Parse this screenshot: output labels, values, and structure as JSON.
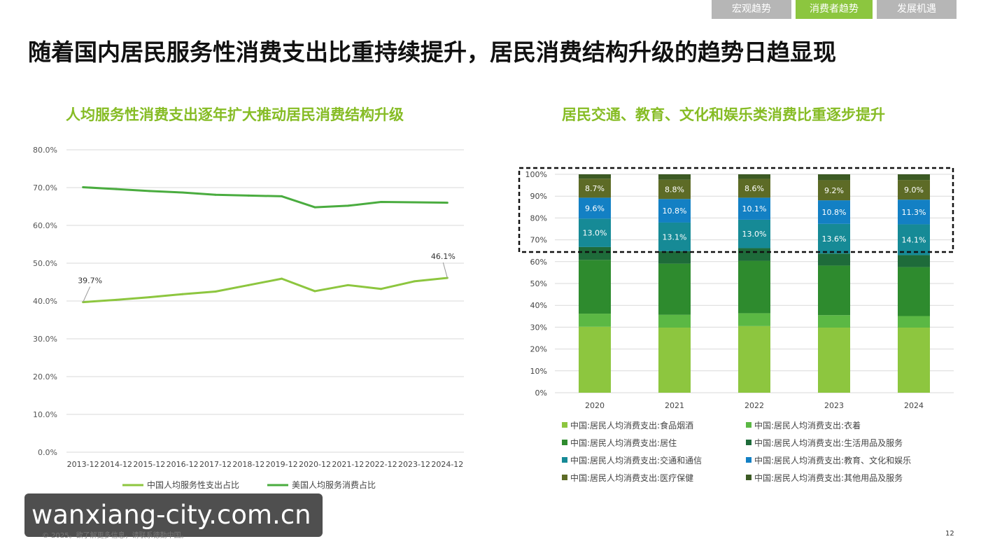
{
  "tabs": [
    {
      "label": "宏观趋势",
      "active": false
    },
    {
      "label": "消费者趋势",
      "active": true
    },
    {
      "label": "发展机遇",
      "active": false
    }
  ],
  "page_title": "随着国内居民服务性消费支出比重持续提升，居民消费结构升级的趋势日趋显现",
  "chart_data": [
    {
      "type": "line",
      "title": "人均服务性消费支出逐年扩大推动居民消费结构升级",
      "x": [
        "2013-12",
        "2014-12",
        "2015-12",
        "2016-12",
        "2017-12",
        "2018-12",
        "2019-12",
        "2020-12",
        "2021-12",
        "2022-12",
        "2023-12",
        "2024-12"
      ],
      "ylim": [
        0,
        80
      ],
      "yticks": [
        "0.0%",
        "10.0%",
        "20.0%",
        "30.0%",
        "40.0%",
        "50.0%",
        "60.0%",
        "70.0%",
        "80.0%"
      ],
      "grid": true,
      "legend_position": "bottom",
      "series": [
        {
          "name": "中国人均服务性支出占比",
          "color": "#8dc63f",
          "values": [
            39.7,
            40.3,
            41.0,
            41.8,
            42.5,
            44.2,
            45.9,
            42.6,
            44.2,
            43.2,
            45.2,
            46.1
          ]
        },
        {
          "name": "美国人均服务消费占比",
          "color": "#4aac3f",
          "values": [
            70.1,
            69.6,
            69.1,
            68.7,
            68.1,
            67.9,
            67.7,
            64.8,
            65.2,
            66.2,
            66.1,
            66.0
          ]
        }
      ],
      "annotations": [
        {
          "series": 0,
          "index": 0,
          "text": "39.7%"
        },
        {
          "series": 0,
          "index": 11,
          "text": "46.1%"
        }
      ]
    },
    {
      "type": "bar",
      "stacked": true,
      "title": "居民交通、教育、文化和娱乐类消费比重逐步提升",
      "categories": [
        "2020",
        "2021",
        "2022",
        "2023",
        "2024"
      ],
      "ylim": [
        0,
        100
      ],
      "yticks": [
        "0%",
        "10%",
        "20%",
        "30%",
        "40%",
        "50%",
        "60%",
        "70%",
        "80%",
        "90%",
        "100%"
      ],
      "grid": true,
      "legend_position": "bottom",
      "series": [
        {
          "name": "中国:居民人均消费支出:食品烟酒",
          "color": "#8dc63f",
          "values": [
            30.2,
            29.8,
            30.5,
            29.8,
            29.8
          ],
          "labels": [
            "",
            "",
            "",
            "",
            ""
          ]
        },
        {
          "name": "中国:居民人均消费支出:衣着",
          "color": "#5bb844",
          "values": [
            6.0,
            5.9,
            5.9,
            5.7,
            5.3
          ],
          "labels": [
            "",
            "",
            "",
            "",
            ""
          ]
        },
        {
          "name": "中国:居民人均消费支出:居住",
          "color": "#2e8b2e",
          "values": [
            24.6,
            23.4,
            24.0,
            22.7,
            22.4
          ],
          "labels": [
            "",
            "",
            "",
            "",
            ""
          ]
        },
        {
          "name": "中国:居民人均消费支出:生活用品及服务",
          "color": "#1e6b3a",
          "values": [
            5.9,
            5.7,
            5.8,
            5.5,
            5.5
          ],
          "labels": [
            "",
            "",
            "",
            "",
            ""
          ]
        },
        {
          "name": "中国:居民人均消费支出:交通和通信",
          "color": "#168a96",
          "values": [
            13.0,
            13.1,
            13.0,
            13.6,
            14.1
          ],
          "labels": [
            "13.0%",
            "13.1%",
            "13.0%",
            "13.6%",
            "14.1%"
          ]
        },
        {
          "name": "中国:居民人均消费支出:教育、文化和娱乐",
          "color": "#1380c4",
          "values": [
            9.6,
            10.8,
            10.1,
            10.8,
            11.3
          ],
          "labels": [
            "9.6%",
            "10.8%",
            "10.1%",
            "10.8%",
            "11.3%"
          ]
        },
        {
          "name": "中国:居民人均消费支出:医疗保健",
          "color": "#5d6b26",
          "values": [
            8.7,
            8.8,
            8.6,
            9.2,
            9.0
          ],
          "labels": [
            "8.7%",
            "8.8%",
            "8.6%",
            "9.2%",
            "9.0%"
          ]
        },
        {
          "name": "中国:居民人均消费支出:其他用品及服务",
          "color": "#3c5a24",
          "values": [
            2.0,
            2.5,
            2.1,
            2.7,
            2.6
          ],
          "labels": [
            "",
            "",
            "",
            "",
            ""
          ]
        }
      ]
    }
  ],
  "watermark": "wanxiang-city.com.cn",
  "footer": "© 2025。欲了解更多信息，请联系德勤中国。",
  "page_number": "12"
}
